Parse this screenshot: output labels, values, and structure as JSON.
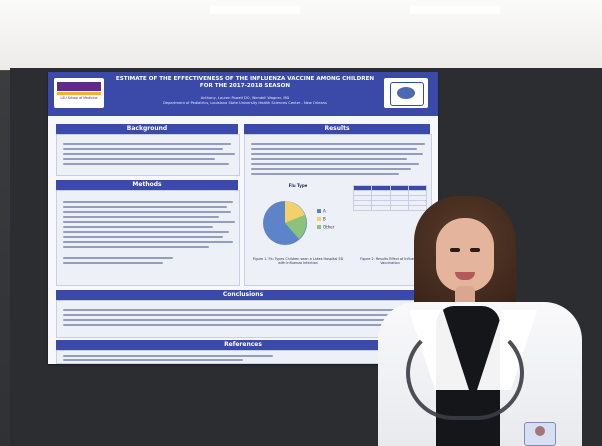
{
  "poster": {
    "title": "ESTIMATE OF THE EFFECTIVENESS OF THE INFLUENZA VACCINE AMONG CHILDREN FOR THE 2017-2018 SEASON",
    "authors": "Anthony, Lauren Powell DO, Wendell Wagner, MD",
    "affiliation": "Department of Pediatrics, Louisiana State University Health Sciences Center - New Orleans",
    "logo_left": "LSU School of Medicine",
    "sections": {
      "background": "Background",
      "methods": "Methods",
      "results": "Results",
      "conclusions": "Conclusions",
      "references": "References"
    },
    "chart_title": "Flu Type",
    "figure_1_caption": "Figure 1. Flu Types Children seen a Lakes Hospital ED with Influenza Infection",
    "figure_2_caption": "Figure 2. Results Effect of Influenza Vaccination",
    "pie_labels": [
      "A",
      "B",
      "Other"
    ]
  }
}
